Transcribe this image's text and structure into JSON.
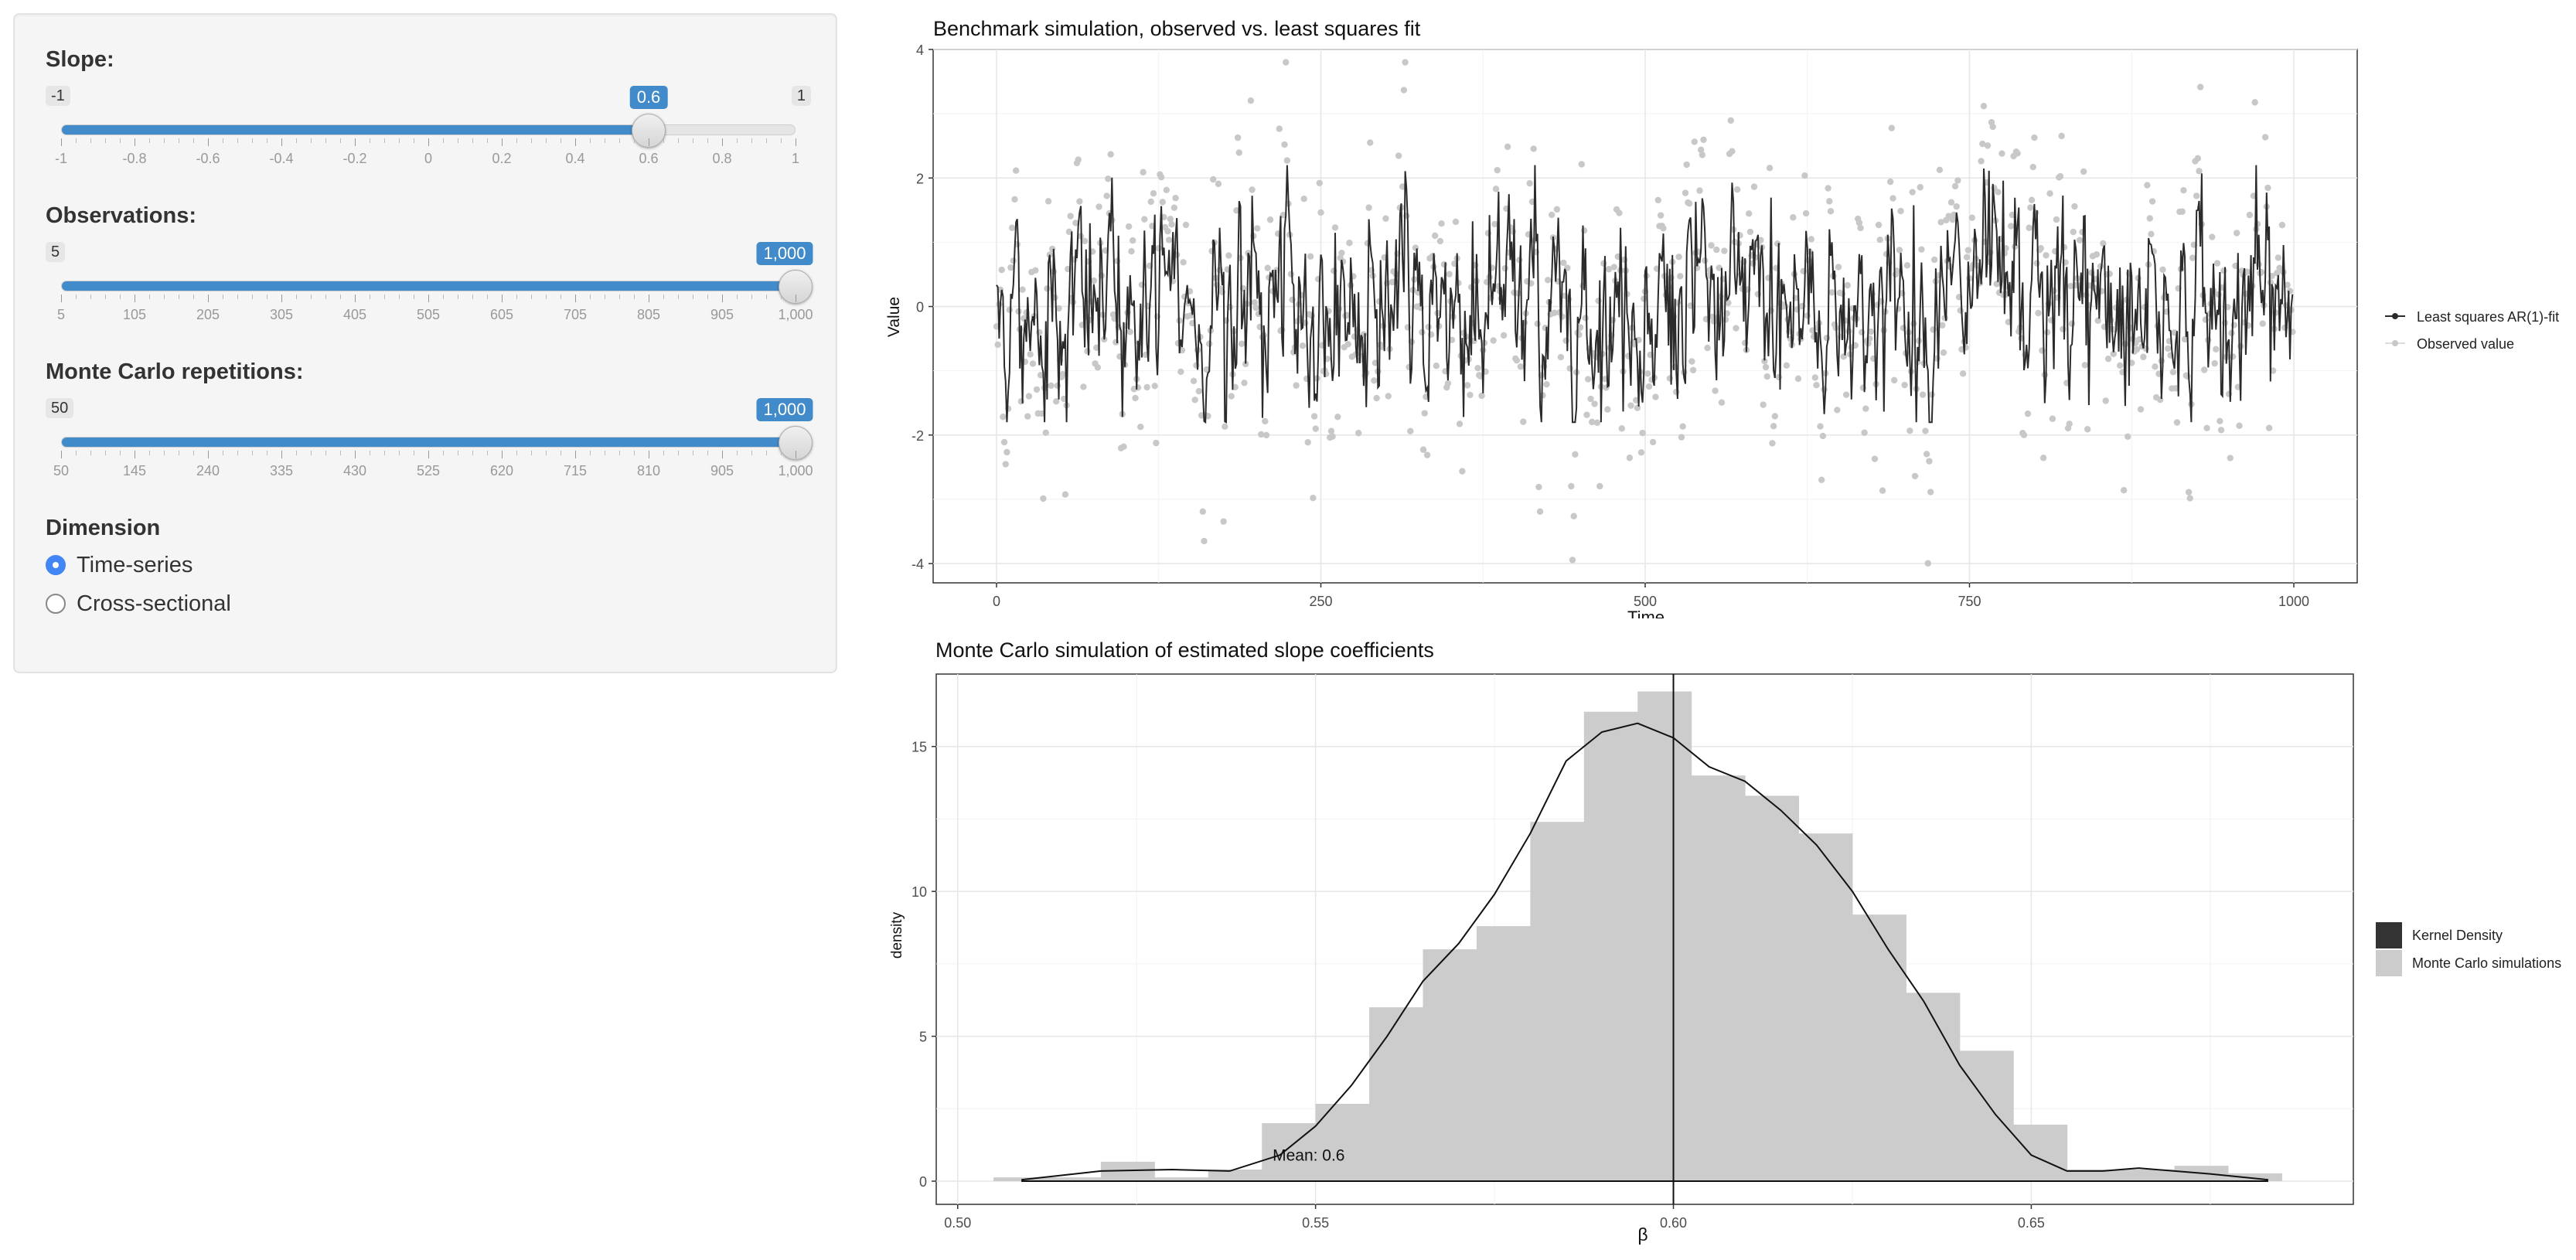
{
  "sidebar": {
    "slope": {
      "label": "Slope:",
      "min_label": "-1",
      "max_label": "1",
      "value_label": "0.6",
      "value": 0.6,
      "min": -1,
      "max": 1,
      "ticks": [
        "-1",
        "-0.8",
        "-0.6",
        "-0.4",
        "-0.2",
        "0",
        "0.2",
        "0.4",
        "0.6",
        "0.8",
        "1"
      ]
    },
    "observations": {
      "label": "Observations:",
      "min_label": "5",
      "value_label": "1,000",
      "value": 1000,
      "min": 5,
      "max": 1000,
      "ticks": [
        "5",
        "105",
        "205",
        "305",
        "405",
        "505",
        "605",
        "705",
        "805",
        "905",
        "1,000"
      ]
    },
    "repetitions": {
      "label": "Monte Carlo repetitions:",
      "min_label": "50",
      "value_label": "1,000",
      "value": 1000,
      "min": 50,
      "max": 1000,
      "ticks": [
        "50",
        "145",
        "240",
        "335",
        "430",
        "525",
        "620",
        "715",
        "810",
        "905",
        "1,000"
      ]
    },
    "dimension": {
      "label": "Dimension",
      "options": [
        "Time-series",
        "Cross-sectional"
      ],
      "selected": "Time-series"
    }
  },
  "colors": {
    "accent": "#428bca",
    "radio_selected": "#4285f4",
    "fit_line": "#2b2b2b",
    "observed_points": "#c8c8c8",
    "histogram_fill": "#cccccc",
    "density_legend": "#333333"
  },
  "plots": {
    "ts": {
      "title": "Benchmark simulation, observed vs. least squares fit",
      "xlabel": "Time",
      "ylabel": "Value",
      "legend": [
        "Least squares AR(1)-fit",
        "Observed value"
      ]
    },
    "mc": {
      "title": "Monte Carlo simulation of estimated slope coefficients",
      "xlabel": "β",
      "ylabel": "density",
      "legend": [
        "Kernel Density",
        "Monte Carlo simulations"
      ],
      "annotation": "Mean: 0.6"
    }
  },
  "chart_data": [
    {
      "type": "line",
      "title": "Benchmark simulation, observed vs. least squares fit",
      "xlabel": "Time",
      "ylabel": "Value",
      "xlim": [
        0,
        1000
      ],
      "ylim": [
        -4.3,
        4.0
      ],
      "x_ticks": [
        0,
        250,
        500,
        750,
        1000
      ],
      "y_ticks": [
        -4,
        -2,
        0,
        2,
        4
      ],
      "series": [
        {
          "name": "Least squares AR(1)-fit",
          "kind": "line",
          "n": 1000,
          "range": [
            -1.8,
            2.2
          ]
        },
        {
          "name": "Observed value",
          "kind": "points",
          "n": 1000,
          "range": [
            -4.1,
            3.8
          ]
        }
      ],
      "grid": true,
      "legend_position": "right"
    },
    {
      "type": "bar",
      "title": "Monte Carlo simulation of estimated slope coefficients",
      "xlabel": "β",
      "ylabel": "density",
      "xlim": [
        0.497,
        0.695
      ],
      "ylim": [
        -0.8,
        17.5
      ],
      "x_ticks": [
        0.5,
        0.55,
        0.6,
        0.65
      ],
      "y_ticks": [
        0,
        5,
        10,
        15
      ],
      "bin_edges": [
        0.505,
        0.5125,
        0.52,
        0.5275,
        0.535,
        0.5425,
        0.55,
        0.5575,
        0.565,
        0.5725,
        0.58,
        0.5875,
        0.595,
        0.6025,
        0.61,
        0.6175,
        0.625,
        0.6325,
        0.64,
        0.6475,
        0.655,
        0.6625,
        0.67,
        0.6775,
        0.685
      ],
      "histogram": [
        0.13,
        0.13,
        0.67,
        0.13,
        0.4,
        2.0,
        2.67,
        6.0,
        8.0,
        8.8,
        12.4,
        16.2,
        16.9,
        14.0,
        13.3,
        12.0,
        9.2,
        6.5,
        4.5,
        1.95,
        0.4,
        0.4,
        0.53,
        0.27
      ],
      "density": {
        "x": [
          0.509,
          0.52,
          0.53,
          0.538,
          0.545,
          0.55,
          0.555,
          0.56,
          0.565,
          0.57,
          0.575,
          0.58,
          0.585,
          0.59,
          0.595,
          0.6,
          0.605,
          0.61,
          0.615,
          0.62,
          0.625,
          0.63,
          0.635,
          0.64,
          0.645,
          0.65,
          0.655,
          0.66,
          0.665,
          0.67,
          0.675,
          0.683
        ],
        "y": [
          0.05,
          0.35,
          0.4,
          0.35,
          0.9,
          1.9,
          3.3,
          5.0,
          6.9,
          8.2,
          9.9,
          12.0,
          14.5,
          15.5,
          15.8,
          15.3,
          14.3,
          13.8,
          12.8,
          11.6,
          10.0,
          8.0,
          6.2,
          4.0,
          2.3,
          0.9,
          0.35,
          0.35,
          0.45,
          0.35,
          0.25,
          0.05
        ]
      },
      "vline": 0.6,
      "annotation": {
        "text": "Mean: 0.6",
        "x": 0.544,
        "y": 0.9
      },
      "legend_position": "right"
    }
  ]
}
